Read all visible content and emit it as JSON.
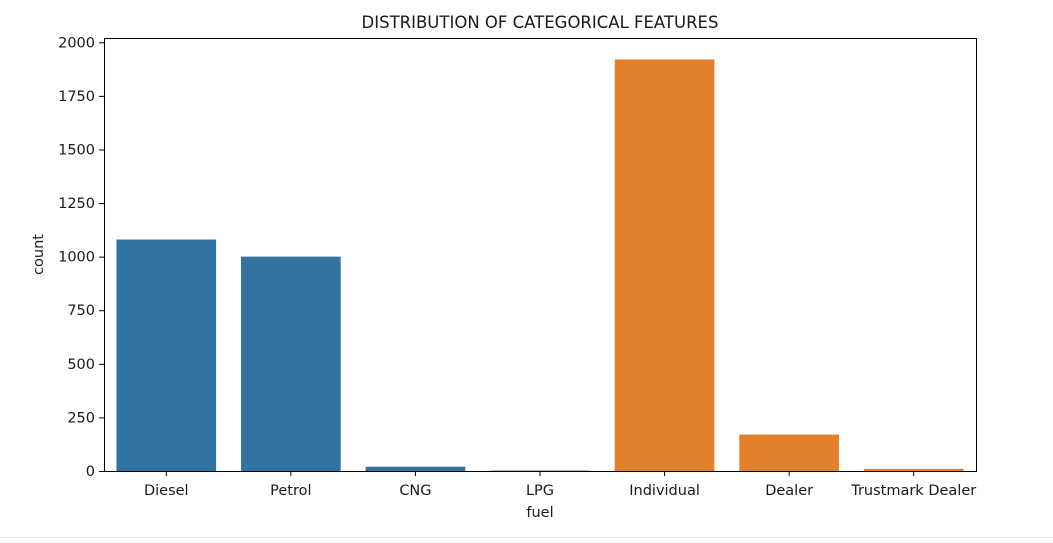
{
  "chart_data": {
    "type": "bar",
    "title": "DISTRIBUTION OF CATEGORICAL FEATURES",
    "xlabel": "fuel",
    "ylabel": "count",
    "categories": [
      "Diesel",
      "Petrol",
      "CNG",
      "LPG",
      "Individual",
      "Dealer",
      "Trustmark Dealer"
    ],
    "values": [
      1080,
      1000,
      20,
      2,
      1920,
      170,
      10
    ],
    "bar_colors": [
      "#3274a1",
      "#3274a1",
      "#3274a1",
      "#3274a1",
      "#e1812c",
      "#e1812c",
      "#e1812c"
    ],
    "ylim": [
      0,
      2020
    ],
    "yticks": [
      0,
      250,
      500,
      750,
      1000,
      1250,
      1500,
      1750,
      2000
    ],
    "grid": false,
    "legend": "none"
  }
}
